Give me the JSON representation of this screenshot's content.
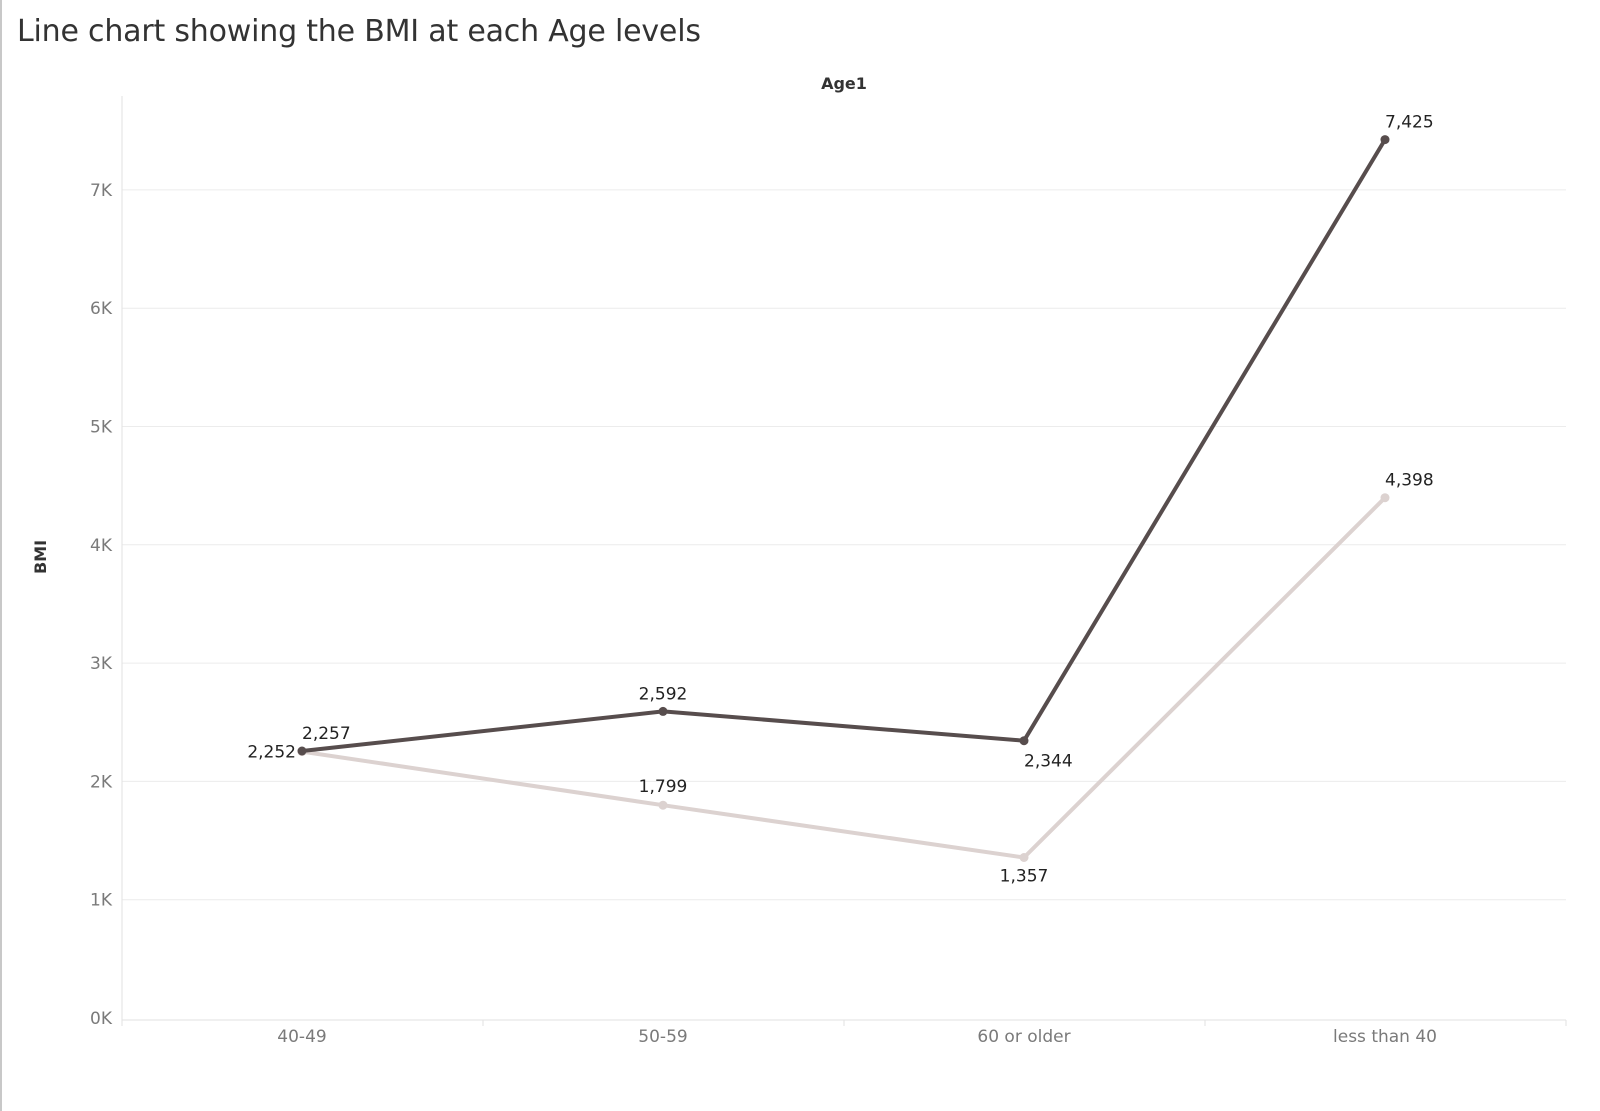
{
  "page": {
    "title": "Line chart showing the BMI at each Age levels"
  },
  "chart_data": {
    "type": "line",
    "title": "Line chart showing the BMI at each Age levels",
    "column_header": "Age1",
    "xlabel": "",
    "ylabel": "BMI",
    "categories": [
      "40-49",
      "50-59",
      "60 or older",
      "less than 40"
    ],
    "y_ticks": [
      "0K",
      "1K",
      "2K",
      "3K",
      "4K",
      "5K",
      "6K",
      "7K"
    ],
    "ylim": [
      0,
      7800
    ],
    "grid": true,
    "legend": "none",
    "series": [
      {
        "values": [
          2257,
          2592,
          2344,
          7425
        ],
        "labels": [
          "2,257",
          "2,592",
          "2,344",
          "7,425"
        ],
        "color": "#574d4d"
      },
      {
        "values": [
          2252,
          1799,
          1357,
          4398
        ],
        "labels": [
          "2,252",
          "1,799",
          "1,357",
          "4,398"
        ],
        "color": "#dcd2d0"
      }
    ]
  }
}
